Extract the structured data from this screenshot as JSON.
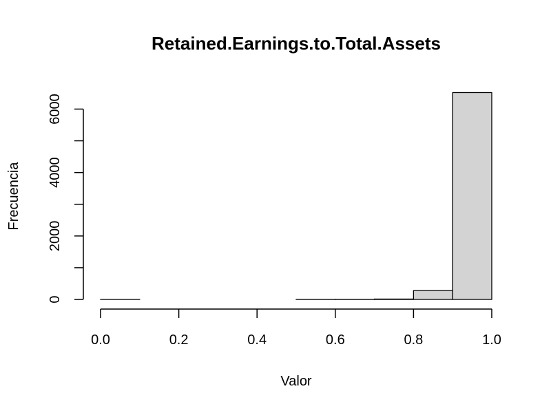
{
  "chart_data": {
    "type": "bar",
    "title": "Retained.Earnings.to.Total.Assets",
    "xlabel": "Valor",
    "ylabel": "Frecuencia",
    "bin_edges": [
      0.0,
      0.1,
      0.2,
      0.3,
      0.4,
      0.5,
      0.6,
      0.7,
      0.8,
      0.9,
      1.0
    ],
    "values": [
      1,
      0,
      0,
      0,
      0,
      2,
      3,
      12,
      280,
      6520
    ],
    "xlim": [
      0.0,
      1.0
    ],
    "ylim": [
      0,
      6520
    ],
    "x_ticks": [
      0.0,
      0.2,
      0.4,
      0.6,
      0.8,
      1.0
    ],
    "x_tick_labels": [
      "0.0",
      "0.2",
      "0.4",
      "0.6",
      "0.8",
      "1.0"
    ],
    "y_ticks": [
      0,
      1000,
      2000,
      3000,
      4000,
      5000,
      6000
    ],
    "y_tick_labels": [
      "0",
      "",
      "2000",
      "",
      "4000",
      "",
      "6000"
    ],
    "bar_color": "#d3d3d3",
    "grid": false
  }
}
